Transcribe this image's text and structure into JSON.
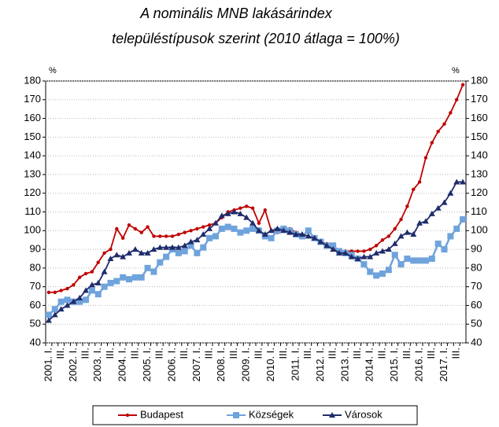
{
  "chart_data": {
    "type": "line",
    "title_lines": [
      "A nominális MNB lakásárindex",
      "településtípusok szerint (2010 átlaga = 100%)"
    ],
    "y_unit": "%",
    "y2_unit": "%",
    "categories": [
      "2001. I.",
      null,
      "III.",
      null,
      "2002. I.",
      null,
      "III.",
      null,
      "2003. I.",
      null,
      "III.",
      null,
      "2004. I.",
      null,
      "III.",
      null,
      "2005. I.",
      null,
      "III.",
      null,
      "2006. I.",
      null,
      "III.",
      null,
      "2007. I.",
      null,
      "III.",
      null,
      "2008. I.",
      null,
      "III.",
      null,
      "2009. I.",
      null,
      "III.",
      null,
      "2010. I.",
      null,
      "III.",
      null,
      "2011. I.",
      null,
      "III.",
      null,
      "2012. I.",
      null,
      "III.",
      null,
      "2013. I.",
      null,
      "III.",
      null,
      "2014. I.",
      null,
      "III.",
      null,
      "2015. I.",
      null,
      "III.",
      null,
      "2016. I.",
      null,
      "III.",
      null,
      "2017. I.",
      null,
      "III.",
      null
    ],
    "series": [
      {
        "name": "Budapest",
        "color": "#c00000",
        "marker": "circle",
        "values": [
          67,
          67,
          68,
          69,
          71,
          75,
          77,
          78,
          83,
          88,
          90,
          101,
          96,
          103,
          101,
          99,
          102,
          97,
          97,
          97,
          97,
          98,
          99,
          100,
          101,
          102,
          103,
          104,
          107,
          110,
          111,
          112,
          113,
          112,
          104,
          111,
          100,
          99,
          100,
          101,
          99,
          98,
          97,
          96,
          94,
          93,
          91,
          89,
          89,
          89,
          89,
          89,
          90,
          92,
          95,
          97,
          101,
          106,
          113,
          122,
          126,
          139,
          147,
          153,
          157,
          163,
          170,
          178
        ]
      },
      {
        "name": "Községek",
        "color": "#6fa3dc",
        "marker": "square",
        "values": [
          55,
          58,
          62,
          63,
          62,
          62,
          63,
          68,
          66,
          70,
          72,
          73,
          75,
          74,
          75,
          75,
          80,
          78,
          83,
          86,
          90,
          88,
          89,
          92,
          88,
          91,
          96,
          97,
          101,
          102,
          101,
          99,
          100,
          101,
          100,
          97,
          96,
          100,
          101,
          100,
          98,
          97,
          100,
          96,
          94,
          92,
          92,
          89,
          88,
          87,
          85,
          82,
          78,
          76,
          77,
          79,
          87,
          82,
          85,
          84,
          84,
          84,
          85,
          93,
          90,
          97,
          101,
          106
        ]
      },
      {
        "name": "Városok",
        "color": "#1f2d6b",
        "marker": "triangle",
        "values": [
          52,
          55,
          58,
          60,
          62,
          64,
          68,
          71,
          72,
          78,
          85,
          87,
          86,
          88,
          90,
          88,
          88,
          90,
          91,
          91,
          91,
          91,
          92,
          94,
          95,
          98,
          101,
          104,
          108,
          109,
          110,
          109,
          107,
          104,
          100,
          98,
          100,
          101,
          100,
          99,
          98,
          98,
          97,
          96,
          94,
          92,
          90,
          88,
          88,
          86,
          85,
          86,
          86,
          88,
          89,
          90,
          93,
          97,
          99,
          98,
          104,
          105,
          109,
          112,
          115,
          120,
          126,
          126
        ]
      }
    ],
    "ylim": [
      40,
      180
    ],
    "yticks": [
      40,
      50,
      60,
      70,
      80,
      90,
      100,
      110,
      120,
      130,
      140,
      150,
      160,
      170,
      180
    ],
    "y2lim": [
      40,
      180
    ],
    "y2ticks": [
      40,
      50,
      60,
      70,
      80,
      90,
      100,
      110,
      120,
      130,
      140,
      150,
      160,
      170,
      180
    ],
    "grid": true,
    "legend": "bottom"
  }
}
